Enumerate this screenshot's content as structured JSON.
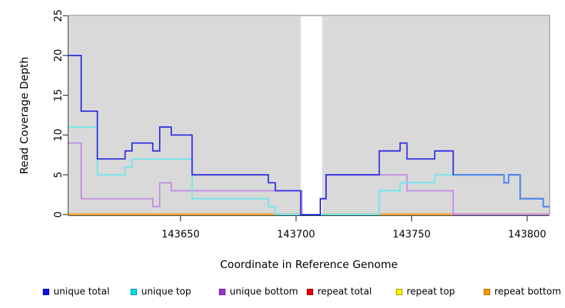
{
  "chart_data": {
    "type": "line",
    "subtype": "step-coverage",
    "title": "",
    "xlabel": "Coordinate in Reference Genome",
    "ylabel": "Read Coverage Depth",
    "xlim": [
      143601.5,
      143809.6
    ],
    "ylim": [
      0,
      25
    ],
    "xticks": [
      143650,
      143700,
      143750,
      143800
    ],
    "xtick_labels": [
      "143650",
      "143700",
      "143750",
      "143800"
    ],
    "yticks": [
      0,
      5,
      10,
      15,
      20,
      25
    ],
    "ytick_labels": [
      "0",
      "5",
      "10",
      "15",
      "20",
      "25"
    ],
    "grid": false,
    "panel_background": "#d9d9d9",
    "gap_region": {
      "from": 143702,
      "to": 143711.3,
      "color": "#ffffff"
    },
    "series": [
      {
        "name": "unique bottom",
        "color": "#c28fe3",
        "width": 2,
        "steps": [
          [
            143601.5,
            9
          ],
          [
            143607,
            2
          ],
          [
            143638,
            1
          ],
          [
            143641,
            4
          ],
          [
            143646,
            3
          ],
          [
            143702.5,
            0
          ],
          [
            143710.5,
            2
          ],
          [
            143713,
            5
          ],
          [
            143748,
            3
          ],
          [
            143768,
            0
          ],
          [
            143809.6,
            0
          ]
        ]
      },
      {
        "name": "unique top",
        "color": "#73e6ea",
        "width": 2,
        "steps": [
          [
            143601.5,
            11
          ],
          [
            143614,
            5
          ],
          [
            143626,
            6
          ],
          [
            143629,
            7
          ],
          [
            143655,
            2
          ],
          [
            143688,
            1
          ],
          [
            143691,
            0
          ],
          [
            143736,
            3
          ],
          [
            143745,
            4
          ],
          [
            143760,
            5
          ],
          [
            143790,
            4
          ],
          [
            143792,
            5
          ],
          [
            143797,
            2
          ],
          [
            143807,
            1
          ],
          [
            143809.6,
            1
          ]
        ]
      },
      {
        "name": "unique total",
        "color": "#2929e0",
        "width": 1.8,
        "steps": [
          [
            143601.5,
            20
          ],
          [
            143607,
            13
          ],
          [
            143614,
            7
          ],
          [
            143626,
            8
          ],
          [
            143629,
            9
          ],
          [
            143638,
            8
          ],
          [
            143641,
            11
          ],
          [
            143646,
            10
          ],
          [
            143655,
            5
          ],
          [
            143688,
            4
          ],
          [
            143691,
            3
          ],
          [
            143702,
            0
          ],
          [
            143710.5,
            2
          ],
          [
            143713,
            5
          ],
          [
            143736,
            8
          ],
          [
            143745,
            9
          ],
          [
            143748,
            7
          ],
          [
            143760,
            8
          ],
          [
            143768,
            5
          ],
          [
            143790,
            4
          ],
          [
            143792,
            5
          ],
          [
            143797,
            2
          ],
          [
            143807,
            1
          ],
          [
            143809.6,
            1
          ]
        ]
      },
      {
        "name": "repeat total",
        "color": "#e80000",
        "width": 2,
        "steps": [
          [
            143601.5,
            0
          ],
          [
            143809.6,
            0
          ]
        ]
      },
      {
        "name": "repeat top",
        "color": "#ffee00",
        "width": 2,
        "steps": [
          [
            143601.5,
            0
          ],
          [
            143809.6,
            0
          ]
        ]
      },
      {
        "name": "repeat bottom",
        "color": "#ff8f00",
        "width": 2,
        "steps": [
          [
            143601.5,
            0
          ],
          [
            143809.6,
            0
          ]
        ]
      }
    ],
    "zero_line_segments": [
      {
        "from": 143601.5,
        "to": 143691,
        "color": "#ff8f00"
      },
      {
        "from": 143691,
        "to": 143702,
        "color": "#82c982"
      },
      {
        "from": 143711.3,
        "to": 143736,
        "color": "#82c982"
      },
      {
        "from": 143736,
        "to": 143768,
        "color": "#ff8f00"
      },
      {
        "from": 143768,
        "to": 143809.6,
        "color": "#d6608a"
      }
    ],
    "overlap_highlight": {
      "from": 143768,
      "color": "#4e86e8",
      "width": 2
    }
  },
  "legend": {
    "items": [
      {
        "label": "unique total",
        "color": "#1010e0",
        "border": "#0b0b9e"
      },
      {
        "label": "unique top",
        "color": "#00dde8",
        "border": "#0097a5"
      },
      {
        "label": "unique bottom",
        "color": "#9933cc",
        "border": "#6e1f96"
      },
      {
        "label": "repeat total",
        "color": "#e80000",
        "border": "#9e0000"
      },
      {
        "label": "repeat top",
        "color": "#ffee00",
        "border": "#a5a000"
      },
      {
        "label": "repeat bottom",
        "color": "#ff9900",
        "border": "#b56c00"
      }
    ]
  }
}
